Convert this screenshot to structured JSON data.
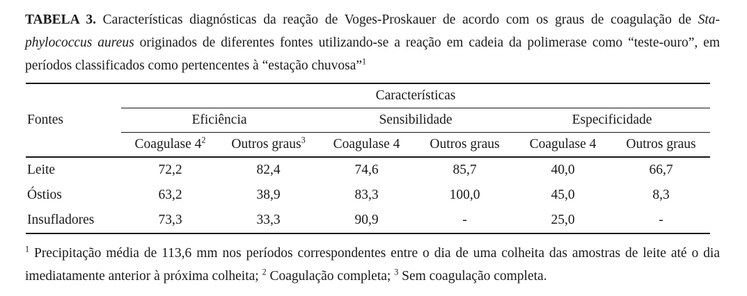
{
  "caption": {
    "label": "TABELA 3.",
    "line1_text": "Características diagnósticas da reação de Voges-Proskauer de acordo com os graus de coagulação de",
    "line1_italic": "Sta-",
    "line2_italic": "phylococcus aureus",
    "line2_text": "originados de diferentes fontes utilizando-se a reação em cadeia da polimerase como “teste-ouro”, em",
    "line3_text": "períodos classificados como pertencentes à “estação chuvosa”",
    "footnote_ref": "1"
  },
  "table": {
    "row_header_label": "Fontes",
    "top_header": "Características",
    "groups": [
      {
        "label": "Eficiência"
      },
      {
        "label": "Sensibilidade"
      },
      {
        "label": "Especificidade"
      }
    ],
    "columns": [
      {
        "label": "Coagulase 4",
        "sup": "2"
      },
      {
        "label": "Outros graus",
        "sup": "3"
      },
      {
        "label": "Coagulase 4",
        "sup": ""
      },
      {
        "label": "Outros graus",
        "sup": ""
      },
      {
        "label": "Coagulase 4",
        "sup": ""
      },
      {
        "label": "Outros graus",
        "sup": ""
      }
    ],
    "rows": [
      {
        "fonte": "Leite",
        "values": [
          "72,2",
          "82,4",
          "74,6",
          "85,7",
          "40,0",
          "66,7"
        ]
      },
      {
        "fonte": "Óstios",
        "values": [
          "63,2",
          "38,9",
          "83,3",
          "100,0",
          "45,0",
          "8,3"
        ]
      },
      {
        "fonte": "Insufladores",
        "values": [
          "73,3",
          "33,3",
          "90,9",
          "-",
          "25,0",
          "-"
        ]
      }
    ]
  },
  "footnote": {
    "sup1": "1",
    "line1_text": "Precipitação média de 113,6 mm nos períodos correspondentes entre o dia de uma colheita das amostras de leite até o dia",
    "line2_part1": "imediatamente anterior à próxima colheita;",
    "sup2": "2",
    "line2_part2": "Coagulação completa;",
    "sup3": "3",
    "line2_part3": "Sem coagulação completa."
  },
  "colors": {
    "text": "#1a1a1a",
    "rule": "#161616",
    "background": "#ffffff"
  }
}
